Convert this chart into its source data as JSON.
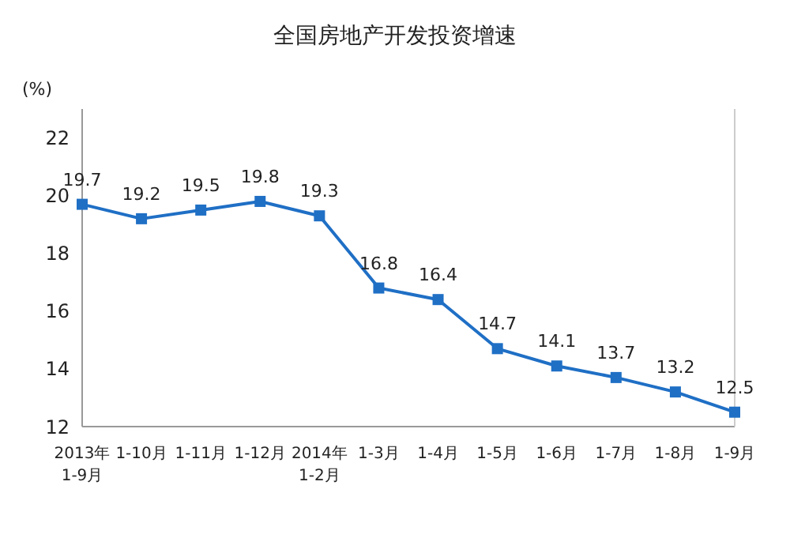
{
  "chart_data": {
    "type": "line",
    "title": "全国房地产开发投资增速",
    "ylabel": "(%)",
    "categories": [
      "2013年\n1-9月",
      "1-10月",
      "1-11月",
      "1-12月",
      "2014年\n1-2月",
      "1-3月",
      "1-4月",
      "1-5月",
      "1-6月",
      "1-7月",
      "1-8月",
      "1-9月"
    ],
    "series": [
      {
        "color": "#1f6fc5",
        "values": [
          19.7,
          19.2,
          19.5,
          19.8,
          19.3,
          16.8,
          16.4,
          14.7,
          14.1,
          13.7,
          13.2,
          12.5
        ]
      }
    ],
    "ylim": [
      12,
      23
    ],
    "yticks": [
      12,
      14,
      16,
      18,
      20,
      22
    ],
    "grid": false,
    "marker": "square",
    "line_style": "solid",
    "data_labels": true
  }
}
